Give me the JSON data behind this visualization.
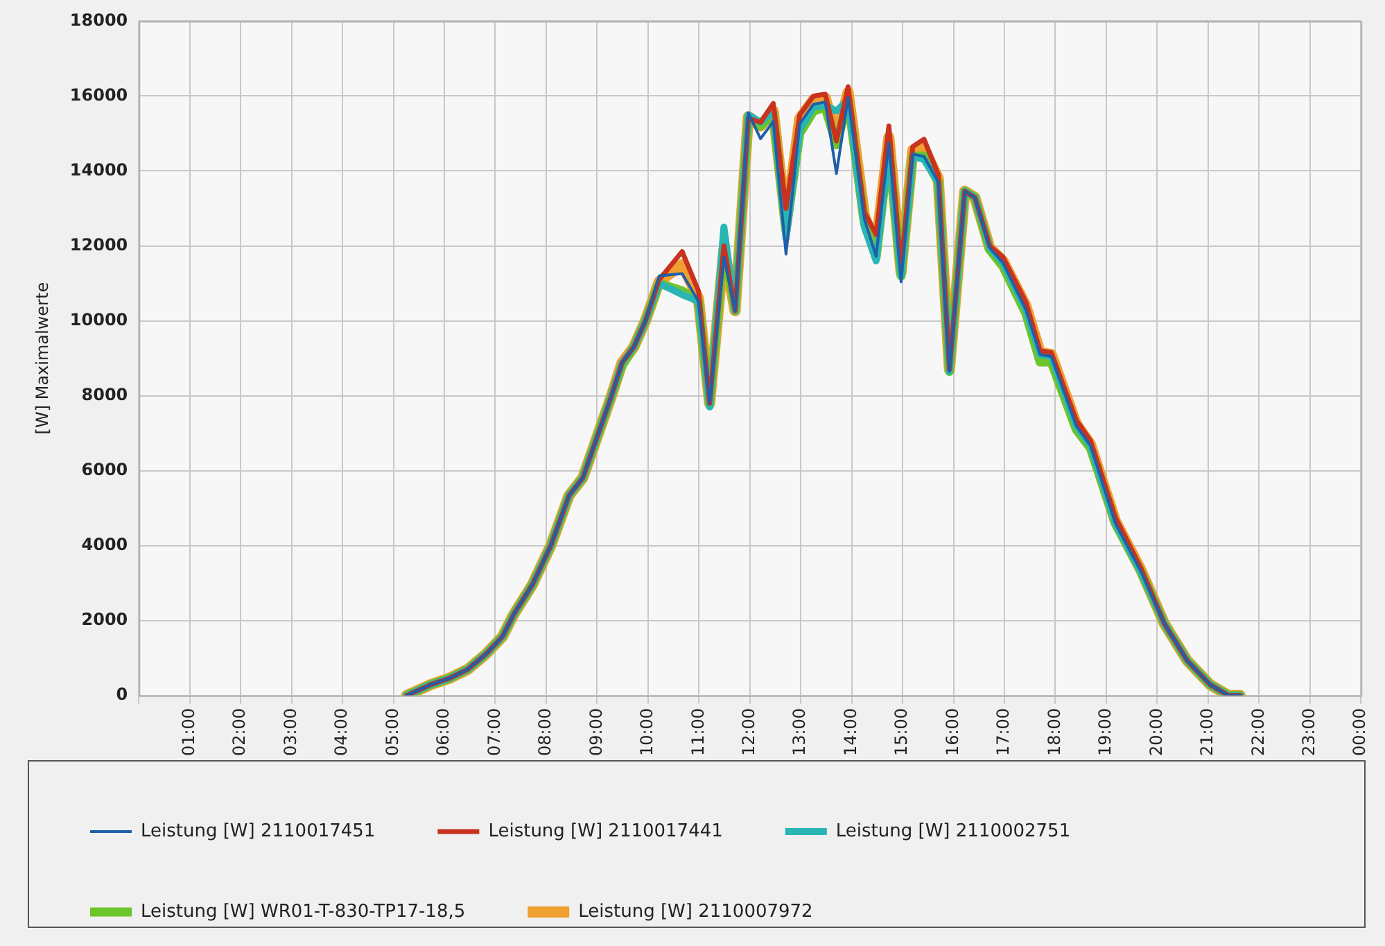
{
  "chart_data": {
    "type": "line",
    "ylabel": "[W] Maximalwerte",
    "x": [
      5.26,
      5.73,
      6.1,
      6.46,
      6.82,
      7.14,
      7.36,
      7.73,
      8.09,
      8.45,
      8.72,
      9.0,
      9.27,
      9.49,
      9.72,
      9.95,
      10.22,
      10.67,
      10.99,
      11.21,
      11.49,
      11.71,
      11.97,
      12.21,
      12.46,
      12.71,
      12.98,
      13.25,
      13.48,
      13.7,
      13.93,
      14.25,
      14.48,
      14.73,
      14.97,
      15.2,
      15.42,
      15.7,
      15.92,
      16.22,
      16.42,
      16.71,
      16.97,
      17.42,
      17.7,
      17.92,
      18.41,
      18.69,
      19.18,
      19.68,
      20.14,
      20.59,
      21.04,
      21.4,
      21.63
    ],
    "series": [
      {
        "name": "Leistung [W] 2110017451",
        "color": "#1f5fa8",
        "values": [
          0,
          290,
          460,
          700,
          1110,
          1570,
          2160,
          2960,
          4000,
          5340,
          5810,
          6900,
          7950,
          8880,
          9300,
          10000,
          11200,
          11260,
          10520,
          7800,
          11700,
          10270,
          15550,
          14860,
          15320,
          11780,
          15260,
          15780,
          15840,
          13930,
          15960,
          12710,
          11720,
          14740,
          11040,
          14450,
          14390,
          13700,
          8650,
          13460,
          13290,
          11950,
          11550,
          10300,
          9100,
          9050,
          7200,
          6670,
          4590,
          3310,
          1920,
          930,
          290,
          0,
          0
        ]
      },
      {
        "name": "Leistung [W] 2110017441",
        "color": "#c8321e",
        "values": [
          0,
          290,
          460,
          700,
          1110,
          1570,
          2160,
          2960,
          4000,
          5340,
          5810,
          6900,
          7950,
          8880,
          9300,
          10000,
          11100,
          11850,
          10800,
          7800,
          12000,
          10270,
          15400,
          15300,
          15800,
          13000,
          15500,
          16000,
          16050,
          14800,
          16250,
          12900,
          12300,
          15200,
          11400,
          14650,
          14850,
          13900,
          8700,
          13460,
          13290,
          12000,
          11700,
          10500,
          9200,
          9150,
          7350,
          6800,
          4750,
          3400,
          1920,
          930,
          290,
          0,
          0
        ]
      },
      {
        "name": "Leistung [W] 2110002751",
        "color": "#2ab5b5",
        "values": [
          0,
          290,
          460,
          700,
          1110,
          1570,
          2160,
          2960,
          4000,
          5340,
          5810,
          6900,
          7950,
          8880,
          9300,
          10000,
          11000,
          10700,
          10520,
          7700,
          12500,
          10270,
          15500,
          15300,
          15600,
          12200,
          15100,
          15700,
          15750,
          15600,
          15900,
          12500,
          11600,
          14600,
          11200,
          14400,
          14300,
          13700,
          8650,
          13460,
          13290,
          11950,
          11550,
          10300,
          9100,
          9050,
          7200,
          6670,
          4590,
          3310,
          1920,
          930,
          290,
          0,
          0
        ]
      },
      {
        "name": "Leistung [W] WR01-T-830-TP17-18,5",
        "color": "#6cc52a",
        "values": [
          0,
          290,
          460,
          700,
          1110,
          1570,
          2160,
          2960,
          4000,
          5340,
          5810,
          6900,
          7950,
          8800,
          9300,
          10000,
          11000,
          10800,
          10520,
          7750,
          12100,
          10270,
          15450,
          15200,
          15500,
          12400,
          15000,
          15600,
          15700,
          14700,
          15900,
          12600,
          11700,
          14600,
          11200,
          14400,
          14400,
          13700,
          8650,
          13460,
          13290,
          11900,
          11450,
          10200,
          8900,
          8900,
          7100,
          6600,
          4590,
          3310,
          1920,
          930,
          290,
          0,
          0
        ]
      },
      {
        "name": "Leistung [W] 2110007972",
        "color": "#f0a030",
        "values": [
          0,
          290,
          460,
          700,
          1110,
          1570,
          2160,
          2960,
          4000,
          5340,
          5810,
          6900,
          7950,
          8880,
          9300,
          10000,
          11050,
          11500,
          10600,
          7800,
          11900,
          10270,
          15450,
          15200,
          15600,
          12600,
          15400,
          15900,
          15950,
          14900,
          16100,
          12800,
          12000,
          14900,
          11300,
          14550,
          14600,
          13800,
          8700,
          13460,
          13290,
          11950,
          11600,
          10400,
          9150,
          9100,
          7250,
          6700,
          4650,
          3350,
          1920,
          930,
          290,
          0,
          0
        ]
      }
    ],
    "xlim": [
      0,
      24
    ],
    "xticks": [
      {
        "value": 0,
        "label": null
      },
      {
        "value": 1,
        "label": "01:00"
      },
      {
        "value": 2,
        "label": "02:00"
      },
      {
        "value": 3,
        "label": "03:00"
      },
      {
        "value": 4,
        "label": "04:00"
      },
      {
        "value": 5,
        "label": "05:00"
      },
      {
        "value": 6,
        "label": "06:00"
      },
      {
        "value": 7,
        "label": "07:00"
      },
      {
        "value": 8,
        "label": "08:00"
      },
      {
        "value": 9,
        "label": "09:00"
      },
      {
        "value": 10,
        "label": "10:00"
      },
      {
        "value": 11,
        "label": "11:00"
      },
      {
        "value": 12,
        "label": "12:00"
      },
      {
        "value": 13,
        "label": "13:00"
      },
      {
        "value": 14,
        "label": "14:00"
      },
      {
        "value": 15,
        "label": "15:00"
      },
      {
        "value": 16,
        "label": "16:00"
      },
      {
        "value": 17,
        "label": "17:00"
      },
      {
        "value": 18,
        "label": "18:00"
      },
      {
        "value": 19,
        "label": "19:00"
      },
      {
        "value": 20,
        "label": "20:00"
      },
      {
        "value": 21,
        "label": "21:00"
      },
      {
        "value": 22,
        "label": "22:00"
      },
      {
        "value": 23,
        "label": "23:00"
      },
      {
        "value": 24,
        "label": "00:00"
      }
    ],
    "ylim": [
      0,
      18000
    ],
    "yticks": [
      0,
      2000,
      4000,
      6000,
      8000,
      10000,
      12000,
      14000,
      16000,
      18000
    ],
    "grid": true,
    "legend": "bottom",
    "marker": "none",
    "line_style": "solid"
  }
}
